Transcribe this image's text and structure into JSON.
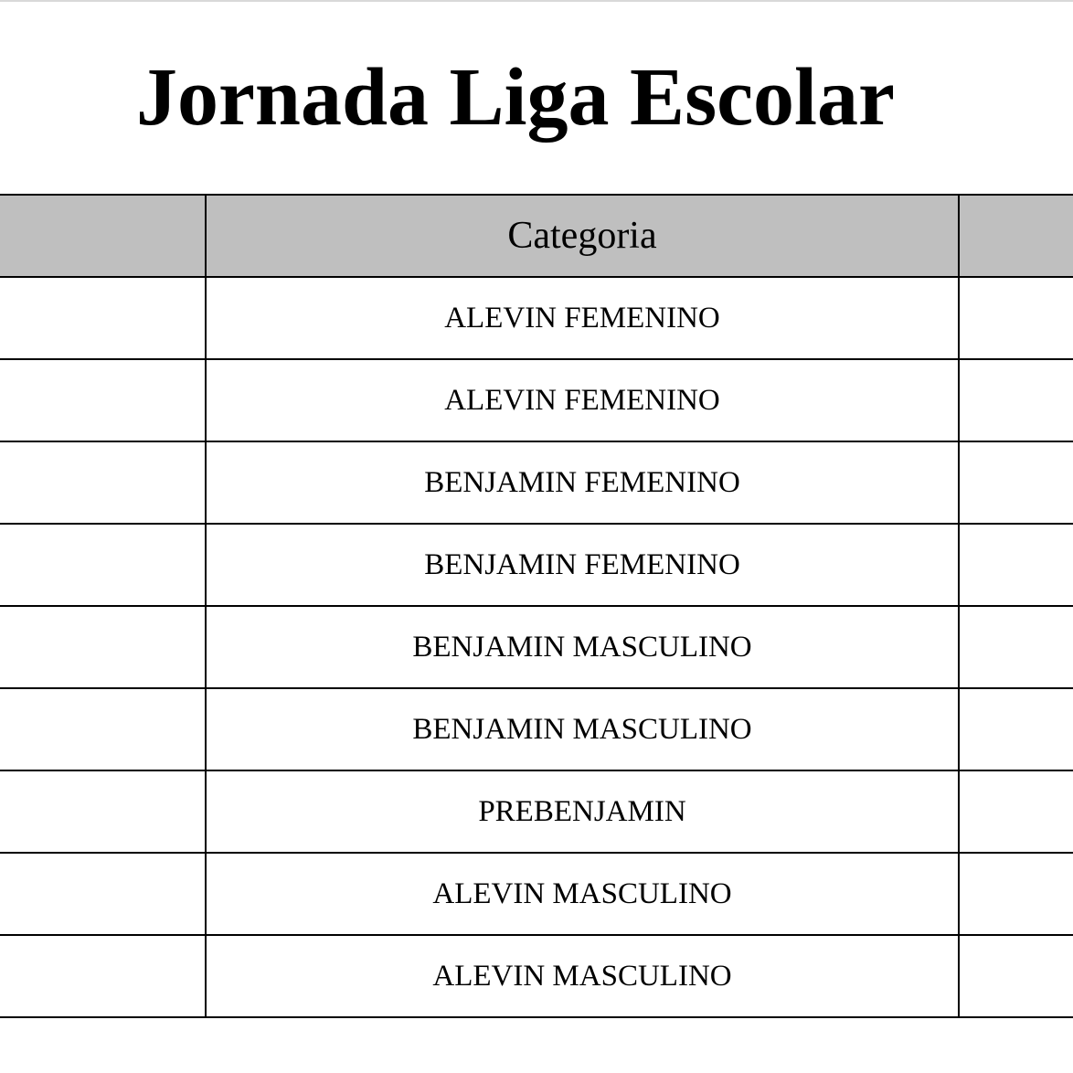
{
  "title": "Jornada Liga Escolar",
  "table": {
    "header": [
      "",
      "Categoria",
      ""
    ],
    "rows": [
      "ALEVIN FEMENINO",
      "ALEVIN FEMENINO",
      "BENJAMIN FEMENINO",
      "BENJAMIN FEMENINO",
      "BENJAMIN MASCULINO",
      "BENJAMIN MASCULINO",
      "PREBENJAMIN",
      "ALEVIN MASCULINO",
      "ALEVIN MASCULINO"
    ]
  },
  "colors": {
    "header_bg": "#bfbfbf",
    "border": "#000000"
  }
}
